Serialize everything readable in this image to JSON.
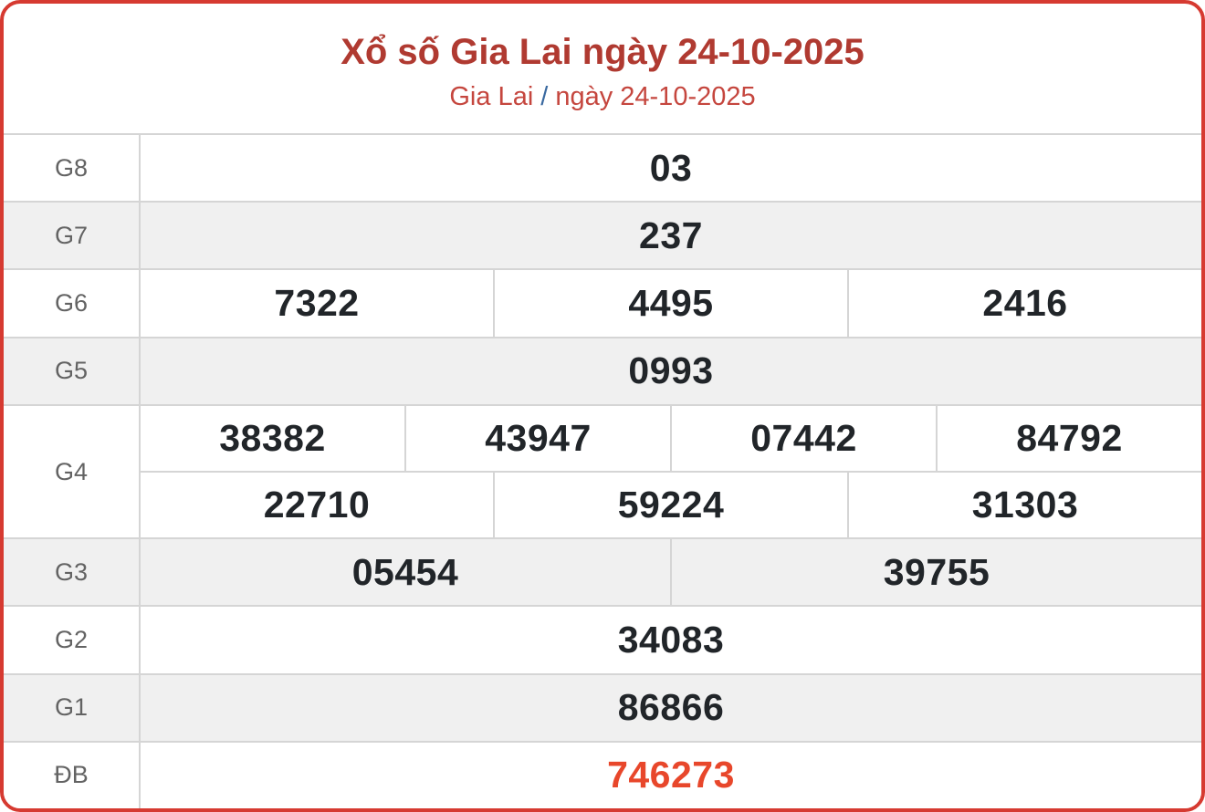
{
  "header": {
    "title": "Xổ số Gia Lai ngày 24-10-2025",
    "subtitle_region": "Gia Lai",
    "subtitle_separator": "/",
    "subtitle_date": "ngày 24-10-2025"
  },
  "colors": {
    "card_border": "#d63a31",
    "title": "#b03a31",
    "subtitle": "#c5463e",
    "separator": "#3a69a0",
    "grid_border": "#d5d5d5",
    "row_alt_bg": "#f0f0f0",
    "label_text": "#636363",
    "number_text": "#212529",
    "special_number": "#e8472b"
  },
  "prizes": [
    {
      "label": "G8",
      "rows": [
        [
          "03"
        ]
      ]
    },
    {
      "label": "G7",
      "rows": [
        [
          "237"
        ]
      ]
    },
    {
      "label": "G6",
      "rows": [
        [
          "7322",
          "4495",
          "2416"
        ]
      ]
    },
    {
      "label": "G5",
      "rows": [
        [
          "0993"
        ]
      ]
    },
    {
      "label": "G4",
      "rows": [
        [
          "38382",
          "43947",
          "07442",
          "84792"
        ],
        [
          "22710",
          "59224",
          "31303"
        ]
      ]
    },
    {
      "label": "G3",
      "rows": [
        [
          "05454",
          "39755"
        ]
      ]
    },
    {
      "label": "G2",
      "rows": [
        [
          "34083"
        ]
      ]
    },
    {
      "label": "G1",
      "rows": [
        [
          "86866"
        ]
      ]
    },
    {
      "label": "ĐB",
      "rows": [
        [
          "746273"
        ]
      ],
      "special": true
    }
  ]
}
